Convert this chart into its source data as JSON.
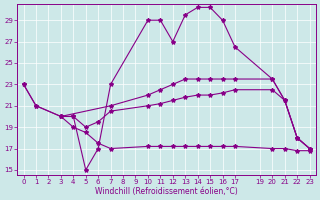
{
  "xlabel": "Windchill (Refroidissement éolien,°C)",
  "xlim": [
    -0.5,
    23.5
  ],
  "ylim": [
    14.5,
    30.5
  ],
  "yticks": [
    15,
    17,
    19,
    21,
    23,
    25,
    27,
    29
  ],
  "xticks": [
    0,
    1,
    2,
    3,
    4,
    5,
    6,
    7,
    8,
    9,
    10,
    11,
    12,
    13,
    14,
    15,
    16,
    17,
    19,
    20,
    21,
    22,
    23
  ],
  "bg_color": "#cde8e8",
  "line_color": "#880088",
  "line1_x": [
    0,
    1,
    3,
    4,
    5,
    6,
    7,
    10,
    11,
    12,
    13,
    14,
    15,
    16,
    17,
    20,
    21,
    22,
    23
  ],
  "line1_y": [
    23,
    21,
    20,
    20,
    15,
    17,
    23,
    29,
    29,
    27,
    29.5,
    30.2,
    30.2,
    29,
    26.5,
    23.5,
    21.5,
    18,
    17
  ],
  "line2_x": [
    0,
    1,
    3,
    7,
    10,
    11,
    12,
    13,
    14,
    15,
    16,
    17,
    20,
    21,
    22,
    23
  ],
  "line2_y": [
    23,
    21,
    20,
    21,
    22,
    22.5,
    23,
    23.5,
    23.5,
    23.5,
    23.5,
    23.5,
    23.5,
    21.5,
    18,
    17
  ],
  "line3_x": [
    3,
    4,
    5,
    6,
    7,
    10,
    11,
    12,
    13,
    14,
    15,
    16,
    17,
    20,
    21,
    22,
    23
  ],
  "line3_y": [
    20,
    20,
    19,
    19.5,
    20.5,
    21,
    21.2,
    21.5,
    21.8,
    22,
    22,
    22.2,
    22.5,
    22.5,
    21.5,
    18,
    17
  ],
  "line4_x": [
    3,
    4,
    5,
    6,
    7,
    10,
    11,
    12,
    13,
    14,
    15,
    16,
    17,
    20,
    21,
    22,
    23
  ],
  "line4_y": [
    20,
    19,
    18.5,
    17.5,
    17,
    17.2,
    17.2,
    17.2,
    17.2,
    17.2,
    17.2,
    17.2,
    17.2,
    17,
    17,
    16.8,
    16.8
  ]
}
